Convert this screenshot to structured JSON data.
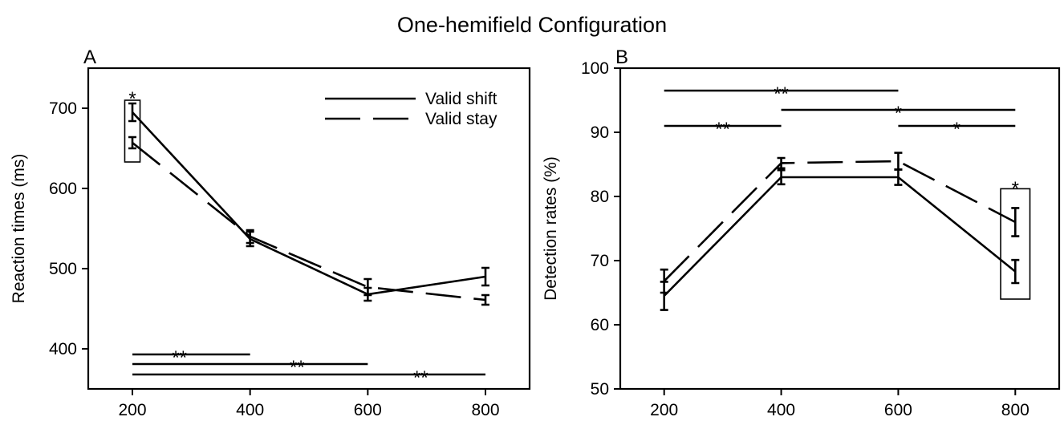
{
  "chart_title": "One-hemifield Configuration",
  "chart_data": [
    {
      "type": "line",
      "panel_label": "A",
      "ylabel": "Reaction times (ms)",
      "xlabel": "",
      "x": [
        200,
        400,
        600,
        800
      ],
      "x_tick_labels": [
        "200",
        "400",
        "600",
        "800"
      ],
      "xlim": [
        125,
        875
      ],
      "ylim": [
        350,
        750
      ],
      "y_ticks": [
        400,
        500,
        600,
        700
      ],
      "y_tick_labels": [
        "400",
        "500",
        "600",
        "700"
      ],
      "grid": false,
      "legend_position": "top-right",
      "series": [
        {
          "name": "Valid shift",
          "style": "solid",
          "values": [
            695,
            537,
            468,
            490
          ],
          "errors": [
            11,
            9,
            8,
            11
          ]
        },
        {
          "name": "Valid stay",
          "style": "dashed",
          "values": [
            657,
            540,
            477,
            461
          ],
          "errors": [
            7,
            8,
            10,
            6
          ]
        }
      ],
      "significance": [
        {
          "from": 200,
          "to": 400,
          "at": 393,
          "label": "**",
          "label_x": 280
        },
        {
          "from": 200,
          "to": 600,
          "at": 381,
          "label": "**",
          "label_x": 480
        },
        {
          "from": 200,
          "to": 800,
          "at": 368,
          "label": "**",
          "label_x": 690
        },
        {
          "from": 200,
          "to": 200,
          "at": 718,
          "label": "*",
          "label_x": 200
        }
      ],
      "boxes": [
        {
          "x0": 187,
          "x1": 213,
          "y0": 633,
          "y1": 710
        }
      ]
    },
    {
      "type": "line",
      "panel_label": "B",
      "ylabel": "Detection rates (%)",
      "xlabel": "",
      "x": [
        200,
        400,
        600,
        800
      ],
      "x_tick_labels": [
        "200",
        "400",
        "600",
        "800"
      ],
      "xlim": [
        125,
        875
      ],
      "ylim": [
        50,
        100
      ],
      "y_ticks": [
        50,
        60,
        70,
        80,
        90,
        100
      ],
      "y_tick_labels": [
        "50",
        "60",
        "70",
        "80",
        "90",
        "100"
      ],
      "grid": false,
      "legend_position": "",
      "series": [
        {
          "name": "Valid shift",
          "style": "solid",
          "values": [
            64.5,
            83,
            83,
            68.3
          ],
          "errors": [
            2.2,
            1.1,
            1.2,
            1.8
          ]
        },
        {
          "name": "Valid stay",
          "style": "dashed",
          "values": [
            66.8,
            85.2,
            85.5,
            76
          ],
          "errors": [
            1.8,
            0.8,
            1.3,
            2.2
          ]
        }
      ],
      "significance": [
        {
          "from": 200,
          "to": 600,
          "at": 96.5,
          "label": "**",
          "label_x": 400
        },
        {
          "from": 400,
          "to": 800,
          "at": 93.5,
          "label": "*",
          "label_x": 600
        },
        {
          "from": 200,
          "to": 400,
          "at": 91,
          "label": "**",
          "label_x": 300
        },
        {
          "from": 600,
          "to": 800,
          "at": 91,
          "label": "*",
          "label_x": 700
        },
        {
          "from": 800,
          "to": 800,
          "at": 82,
          "label": "*",
          "label_x": 800
        }
      ],
      "boxes": [
        {
          "x0": 775,
          "x1": 825,
          "y0": 64,
          "y1": 81.2
        }
      ]
    }
  ]
}
